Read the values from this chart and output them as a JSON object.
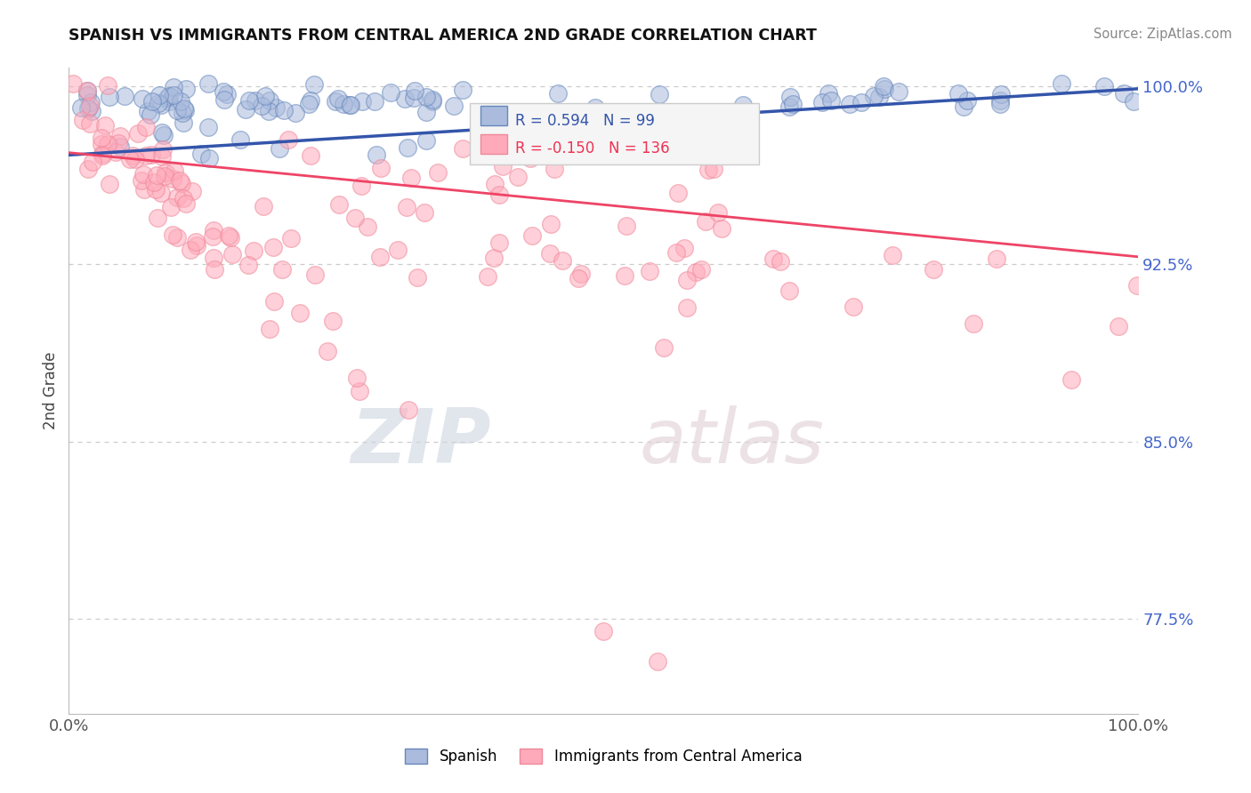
{
  "title": "SPANISH VS IMMIGRANTS FROM CENTRAL AMERICA 2ND GRADE CORRELATION CHART",
  "source": "Source: ZipAtlas.com",
  "ylabel": "2nd Grade",
  "xlim": [
    0.0,
    1.0
  ],
  "ylim": [
    0.735,
    1.008
  ],
  "yticks": [
    0.775,
    0.85,
    0.925,
    1.0
  ],
  "ytick_labels": [
    "77.5%",
    "85.0%",
    "92.5%",
    "100.0%"
  ],
  "blue_circle_facecolor": "#aabbdd",
  "blue_circle_edgecolor": "#6688bb",
  "pink_circle_facecolor": "#ffaabb",
  "pink_circle_edgecolor": "#ee8899",
  "blue_line_color": "#3355aa",
  "pink_line_color": "#ee4466",
  "legend_blue_label": "Spanish",
  "legend_pink_label": "Immigrants from Central America",
  "R_blue": 0.594,
  "N_blue": 99,
  "R_pink": -0.15,
  "N_pink": 136,
  "blue_line_x0": 0.0,
  "blue_line_y0": 0.971,
  "blue_line_x1": 1.0,
  "blue_line_y1": 0.999,
  "pink_line_x0": 0.0,
  "pink_line_y0": 0.972,
  "pink_line_x1": 1.0,
  "pink_line_y1": 0.928
}
